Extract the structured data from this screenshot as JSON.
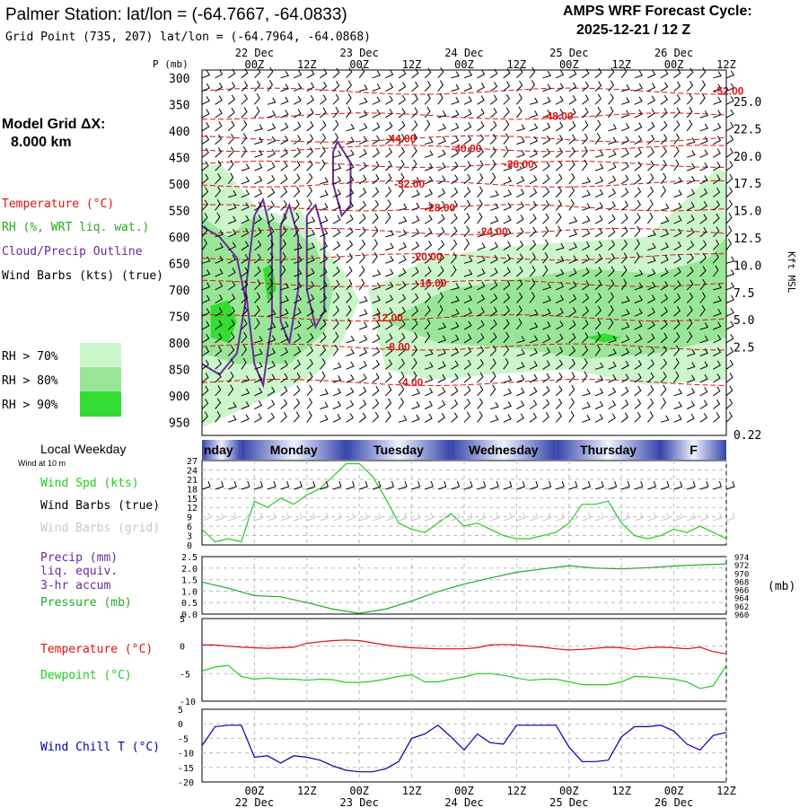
{
  "header": {
    "title": "Palmer Station:  lat/lon = (-64.7667, -64.0833)",
    "grid_point": "Grid Point (735, 207) lat/lon = (-64.7964, -64.0868)",
    "cycle_label": "AMPS WRF Forecast Cycle:",
    "cycle_value": "2025-12-21 / 12  Z"
  },
  "top_axis": {
    "p_label": "P (mb)",
    "hour_ticks": [
      "00Z",
      "12Z",
      "00Z",
      "12Z",
      "00Z",
      "12Z",
      "00Z",
      "12Z",
      "00Z",
      "12Z"
    ],
    "date_labels": [
      "22 Dec",
      "23 Dec",
      "24 Dec",
      "25 Dec",
      "26 Dec"
    ]
  },
  "sidebar": {
    "model_grid_label": "Model Grid ΔX:",
    "model_grid_value": "8.000 km",
    "temperature": "Temperature (°C)",
    "rh": "RH (%, WRT liq. wat.)",
    "cloud": "Cloud/Precip Outline",
    "wind_barbs": "Wind Barbs (kts) (true)",
    "rh70": "RH > 70%",
    "rh80": "RH > 80%",
    "rh90": "RH > 90%",
    "local_weekday": "Local Weekday",
    "wind_at_10m": "Wind at 10 m",
    "wind_spd": "Wind Spd (kts)",
    "wind_barbs_true": "Wind Barbs (true)",
    "wind_barbs_grid": "Wind Barbs (grid)",
    "precip_1": "Precip (mm)",
    "precip_2": "liq. equiv.",
    "precip_3": "3-hr accum",
    "pressure": "Pressure (mb)",
    "pressure_unit": "(mb)",
    "temp2": "Temperature (°C)",
    "dewpoint": "Dewpoint (°C)",
    "windchill": "Wind Chill T (°C)"
  },
  "colors": {
    "temperature": "#e01010",
    "rh70": "#ccf5cc",
    "rh80": "#99e699",
    "rh90": "#33dd33",
    "cloud": "#6a2a9a",
    "wind_speed": "#22cc22",
    "pressure": "#22aa22",
    "dewpoint": "#22cc22",
    "windchill": "#0000aa",
    "weekday_band": "#3344aa"
  },
  "chart_data": [
    {
      "type": "heatmap",
      "name": "cross_section",
      "y_axis_left_label": "P (mb)",
      "y_axis_right_label": "Kft MSL",
      "pressure_ticks": [
        300,
        350,
        400,
        450,
        500,
        550,
        600,
        650,
        700,
        750,
        800,
        850,
        900,
        950
      ],
      "height_ticks_kft": [
        "25.0",
        "22.5",
        "20.0",
        "17.5",
        "15.0",
        "12.5",
        "10.0",
        "7.5",
        "5.0",
        "2.5",
        "0.22"
      ],
      "ylim_mb": [
        975,
        285
      ],
      "x_range_hours": [
        -12,
        108
      ],
      "isotherms": [
        {
          "label": "-52.00",
          "t": 105,
          "p": 325
        },
        {
          "label": "-48.00",
          "t": 66,
          "p": 372
        },
        {
          "label": "-44.00",
          "t": 30,
          "p": 415
        },
        {
          "label": "-40.00",
          "t": 45,
          "p": 433
        },
        {
          "label": "-36.00",
          "t": 57,
          "p": 463
        },
        {
          "label": "-32.00",
          "t": 32,
          "p": 500
        },
        {
          "label": "-28.00",
          "t": 39,
          "p": 545
        },
        {
          "label": "-24.00",
          "t": 51,
          "p": 590
        },
        {
          "label": "-20.00",
          "t": 36,
          "p": 638
        },
        {
          "label": "-16.00",
          "t": 37,
          "p": 688
        },
        {
          "label": "-12.00",
          "t": 27,
          "p": 753
        },
        {
          "label": "-8.00",
          "t": 30,
          "p": 808
        },
        {
          "label": "-4.00",
          "t": 33,
          "p": 875
        }
      ]
    },
    {
      "type": "line",
      "name": "wind_speed",
      "weekdays": [
        "nday",
        "Monday",
        "Tuesday",
        "Wednesday",
        "Thursday",
        "F"
      ],
      "yticks": [
        0,
        3,
        6,
        9,
        12,
        15,
        18,
        21,
        24,
        27
      ],
      "ylim": [
        0,
        27
      ],
      "x": [
        -12,
        -9,
        -6,
        -3,
        0,
        3,
        6,
        9,
        12,
        15,
        18,
        21,
        24,
        27,
        30,
        33,
        36,
        39,
        42,
        45,
        48,
        51,
        54,
        57,
        60,
        63,
        66,
        69,
        72,
        75,
        78,
        81,
        84,
        87,
        90,
        93,
        96,
        99,
        102,
        105,
        108
      ],
      "series": [
        {
          "values": [
            5,
            1,
            2,
            1,
            14,
            12,
            15,
            13,
            16,
            18,
            22,
            26,
            26,
            22,
            15,
            7,
            5,
            4,
            7,
            10,
            6,
            7,
            5,
            3,
            2,
            2,
            3,
            4,
            7,
            13,
            13,
            14,
            7,
            3,
            2,
            3,
            5,
            4,
            6,
            4,
            2
          ]
        }
      ]
    },
    {
      "type": "line",
      "name": "precip_pressure",
      "yticks_left": [
        "0.0",
        "0.5",
        "1.0",
        "1.5",
        "2.0",
        "2.5"
      ],
      "yticks_right": [
        "960",
        "962",
        "964",
        "966",
        "968",
        "970",
        "972",
        "974"
      ],
      "ylim_left": [
        0,
        2.5
      ],
      "ylim_right": [
        960,
        974
      ],
      "x": [
        -12,
        -6,
        0,
        6,
        12,
        18,
        24,
        30,
        36,
        42,
        48,
        54,
        60,
        66,
        72,
        78,
        84,
        90,
        96,
        102,
        108
      ],
      "series": [
        {
          "name": "Pressure (mb)",
          "values": [
            967.8,
            966.3,
            964.5,
            964.2,
            962.8,
            961.2,
            960.2,
            961.2,
            963.2,
            965.5,
            967.3,
            968.8,
            970.2,
            971.0,
            971.8,
            971.2,
            971.0,
            971.3,
            971.7,
            972.0,
            972.2
          ]
        }
      ]
    },
    {
      "type": "line",
      "name": "temperature_dewpoint",
      "yticks": [
        "5",
        "0",
        "-5",
        "-10"
      ],
      "ylim": [
        -10,
        5
      ],
      "x": [
        -12,
        -9,
        -6,
        -3,
        0,
        3,
        6,
        9,
        12,
        15,
        18,
        21,
        24,
        27,
        30,
        33,
        36,
        39,
        42,
        45,
        48,
        51,
        54,
        57,
        60,
        63,
        66,
        69,
        72,
        75,
        78,
        81,
        84,
        87,
        90,
        93,
        96,
        99,
        102,
        105,
        108
      ],
      "series": [
        {
          "name": "Temperature (°C)",
          "values": [
            0.2,
            0.2,
            0.0,
            -0.2,
            -0.3,
            -0.4,
            -0.3,
            -0.2,
            0.5,
            0.8,
            1.0,
            1.1,
            1.0,
            0.6,
            0.2,
            -0.1,
            -0.3,
            -0.4,
            -0.5,
            -0.5,
            -0.5,
            -0.3,
            0.2,
            0.3,
            0.2,
            0.0,
            -0.2,
            -0.5,
            -0.7,
            -0.6,
            -0.4,
            -0.2,
            -0.3,
            -0.6,
            -0.3,
            -0.2,
            -0.3,
            -0.5,
            -0.2,
            -1.0,
            -1.4
          ]
        },
        {
          "name": "Dewpoint (°C)",
          "values": [
            -4.5,
            -3.8,
            -3.5,
            -5.5,
            -6.0,
            -5.8,
            -6.0,
            -6.0,
            -6.2,
            -6.0,
            -6.1,
            -6.6,
            -6.6,
            -6.4,
            -6.0,
            -5.5,
            -5.2,
            -6.5,
            -6.5,
            -6.0,
            -5.6,
            -5.0,
            -5.0,
            -5.3,
            -5.8,
            -6.2,
            -6.0,
            -6.0,
            -6.5,
            -7.0,
            -7.0,
            -7.0,
            -6.5,
            -5.5,
            -5.6,
            -5.8,
            -6.0,
            -6.5,
            -7.7,
            -7.2,
            -3.5
          ]
        }
      ]
    },
    {
      "type": "line",
      "name": "wind_chill",
      "yticks": [
        "5",
        "0",
        "-5",
        "-10",
        "-15",
        "-20"
      ],
      "ylim": [
        -20,
        5
      ],
      "x": [
        -12,
        -9,
        -6,
        -3,
        0,
        3,
        6,
        9,
        12,
        15,
        18,
        21,
        24,
        27,
        30,
        33,
        36,
        39,
        42,
        45,
        48,
        51,
        54,
        57,
        60,
        63,
        66,
        69,
        72,
        75,
        78,
        81,
        84,
        87,
        90,
        93,
        96,
        99,
        102,
        105,
        108
      ],
      "series": [
        {
          "name": "Wind Chill T (°C)",
          "values": [
            -7.5,
            -1,
            -0.5,
            -0.5,
            -11.5,
            -11,
            -13.5,
            -11,
            -11.5,
            -12.5,
            -14.5,
            -16,
            -16.5,
            -16.5,
            -15.5,
            -13,
            -5,
            -3.5,
            -0.5,
            -4.5,
            -9,
            -3.5,
            -6.5,
            -7,
            -0.5,
            -0.5,
            -0.5,
            -0.5,
            -8,
            -13,
            -13,
            -12.5,
            -4.5,
            -1,
            -1,
            -0.5,
            -2.5,
            -7,
            -9,
            -4,
            -3
          ]
        }
      ]
    }
  ]
}
